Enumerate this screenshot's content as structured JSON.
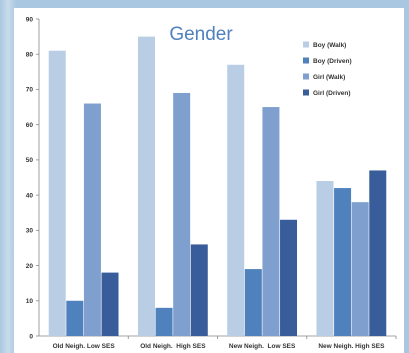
{
  "chart_data": {
    "type": "bar",
    "title": "Gender",
    "xlabel": "",
    "ylabel": "",
    "ylim": [
      0,
      90
    ],
    "yticks": [
      0,
      10,
      20,
      30,
      40,
      50,
      60,
      70,
      80,
      90
    ],
    "grid": false,
    "legend_position": "top-right",
    "categories": [
      "Old Neigh. Low SES",
      "Old Neigh.  High SES",
      "New Neigh.  Low SES",
      "New Neigh. High SES"
    ],
    "series": [
      {
        "name": "Boy (Walk)",
        "color": "#b9cde5",
        "values": [
          81,
          85,
          77,
          44
        ]
      },
      {
        "name": "Boy (Driven)",
        "color": "#4f81bd",
        "values": [
          10,
          8,
          19,
          42
        ]
      },
      {
        "name": "Girl (Walk)",
        "color": "#7f9fcf",
        "values": [
          66,
          69,
          65,
          38
        ]
      },
      {
        "name": "Girl (Driven)",
        "color": "#395d9a",
        "values": [
          18,
          26,
          33,
          47
        ]
      }
    ]
  }
}
